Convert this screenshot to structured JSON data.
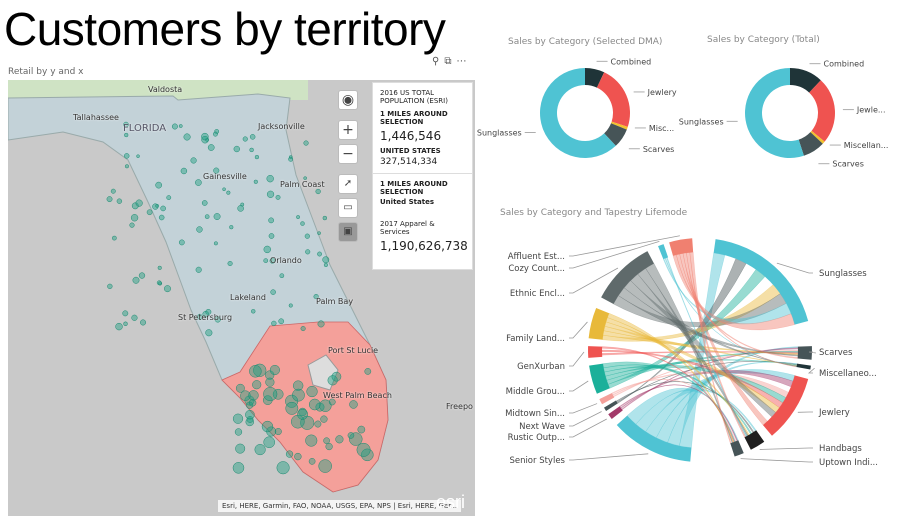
{
  "title": "Customers by territory",
  "map": {
    "label": "Retail by y and x",
    "tools": [
      "pin-icon",
      "expand-icon",
      "more-icon"
    ],
    "cities": [
      {
        "name": "Valdosta"
      },
      {
        "name": "Tallahassee"
      },
      {
        "name": "FLORIDA"
      },
      {
        "name": "Jacksonville"
      },
      {
        "name": "Gainesville"
      },
      {
        "name": "Palm Coast"
      },
      {
        "name": "Orlando"
      },
      {
        "name": "Lakeland"
      },
      {
        "name": "St Petersburg"
      },
      {
        "name": "Palm Bay"
      },
      {
        "name": "Port St Lucie"
      },
      {
        "name": "West Palm Beach"
      },
      {
        "name": "Freepo"
      }
    ],
    "controls": {
      "zoom_in": "+",
      "zoom_out": "−"
    },
    "attribution": "Esri, HERE, Garmin, FAO, NOAA, USGS, EPA, NPS | Esri, HERE, Gar...",
    "logo": "esri",
    "info": {
      "pop_title": "2016 US TOTAL POPULATION (ESRI)",
      "sel_label": "1 MILES AROUND SELECTION",
      "sel_value": "1,446,546",
      "us_label": "UNITED STATES",
      "us_value": "327,514,334",
      "sel_label2": "1 MILES AROUND SELECTION",
      "us_label2": "United States",
      "apparel_label": "2017 Apparel & Services",
      "apparel_value": "1,190,626,738"
    }
  },
  "colors": {
    "Combined": "#1f3438",
    "Jewlery": "#ef5350",
    "Misc": "#f2c12e",
    "Scarves": "#465457",
    "Sunglasses": "#4fc3d3",
    "territory": "#f4a09a",
    "land": "#c3d2d8"
  },
  "chart_data": [
    {
      "type": "pie",
      "title": "Sales by Category (Selected DMA)",
      "donut": true,
      "categories": [
        "Combined",
        "Jewlery",
        "Misc...",
        "Scarves",
        "Sunglasses"
      ],
      "values": [
        7,
        23,
        1,
        7,
        62
      ]
    },
    {
      "type": "pie",
      "title": "Sales by Category (Total)",
      "donut": true,
      "categories": [
        "Combined",
        "Jewle...",
        "Miscellan...",
        "Scarves",
        "Sunglasses"
      ],
      "values": [
        12,
        24,
        1,
        8,
        55
      ]
    },
    {
      "type": "chord",
      "title": "Sales by Category and Tapestry Lifemode",
      "groups": [
        {
          "name": "Sunglasses",
          "color": "#4fc3d3",
          "start": 8,
          "end": 75
        },
        {
          "name": "Scarves",
          "color": "#465457",
          "start": 88,
          "end": 95
        },
        {
          "name": "Miscellaneo...",
          "color": "#1f3438",
          "start": 98,
          "end": 100
        },
        {
          "name": "Jewlery",
          "color": "#ef5350",
          "start": 105,
          "end": 140
        },
        {
          "name": "Handbags",
          "color": "#1f1f1f",
          "start": 145,
          "end": 153
        },
        {
          "name": "Uptown Indi...",
          "color": "#465457",
          "start": 157,
          "end": 162
        },
        {
          "name": "Senior Styles",
          "color": "#4fc3d3",
          "start": 185,
          "end": 228
        },
        {
          "name": "Rustic Outp...",
          "color": "#a33a6a",
          "start": 232,
          "end": 235
        },
        {
          "name": "Next Wave",
          "color": "#465457",
          "start": 237,
          "end": 239
        },
        {
          "name": "Midtown Sin...",
          "color": "#f4a09a",
          "start": 241,
          "end": 244
        },
        {
          "name": "Middle Grou...",
          "color": "#1bb09a",
          "start": 247,
          "end": 262
        },
        {
          "name": "GenXurban",
          "color": "#ef5350",
          "start": 266,
          "end": 272
        },
        {
          "name": "Family Land...",
          "color": "#e8b93a",
          "start": 276,
          "end": 292
        },
        {
          "name": "Ethnic Encl...",
          "color": "#5f6a6b",
          "start": 298,
          "end": 332
        },
        {
          "name": "Cozy Count...",
          "color": "#4fc3d3",
          "start": 338,
          "end": 341
        },
        {
          "name": "Affluent Est...",
          "color": "#f08070",
          "start": 344,
          "end": 356
        }
      ]
    }
  ]
}
